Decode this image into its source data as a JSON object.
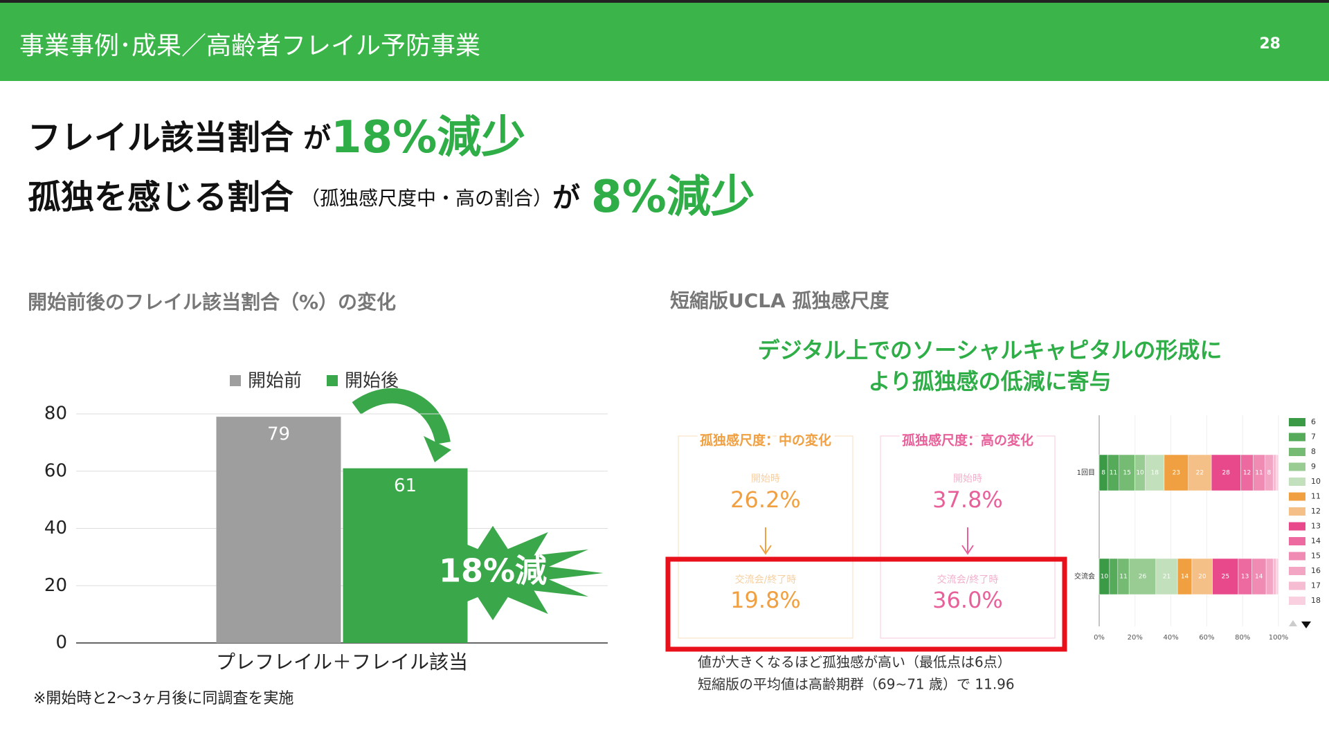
{
  "header": {
    "title": "事業事例･成果／高齢者フレイル予防事業",
    "page": "28"
  },
  "headline": [
    {
      "label": "フレイル該当割合",
      "connector": "が",
      "result": "18%減少"
    },
    {
      "label": "孤独を感じる割合",
      "note": "（孤独感尺度中・高の割合）",
      "connector": "が",
      "result": "8%減少"
    }
  ],
  "left_caption": "開始前後のフレイル該当割合（%）の変化",
  "footnote": "※開始時と2〜3ヶ月後に同調査を実施",
  "right_caption": "短縮版UCLA 孤独感尺度",
  "right_message": [
    "デジタル上でのソーシャルキャピタルの形成に",
    "より孤独感の低減に寄与"
  ],
  "change_boxes": [
    {
      "title": "孤独感尺度：中の変化",
      "before_label": "開始時",
      "before": "26.2%",
      "after_label": "交流会/終了時",
      "after": "19.8%",
      "color": "#f0a040"
    },
    {
      "title": "孤独感尺度：高の変化",
      "before_label": "開始時",
      "before": "37.8%",
      "after_label": "交流会/終了時",
      "after": "36.0%",
      "color": "#e8609a"
    }
  ],
  "notes": [
    "値が大きくなるほど孤独感が高い（最低点は6点）",
    "短縮版の平均値は高齢期群（69~71 歳）で 11.96"
  ],
  "chart_data": [
    {
      "type": "bar",
      "categories": [
        "プレフレイル＋フレイル該当"
      ],
      "series": [
        {
          "name": "開始前",
          "color": "#9e9e9e",
          "values": [
            79
          ]
        },
        {
          "name": "開始後",
          "color": "#3aa84a",
          "values": [
            61
          ]
        }
      ],
      "ylim": [
        0,
        80
      ],
      "yticks": [
        0,
        20,
        40,
        60,
        80
      ],
      "grid": true,
      "annotation": "18%減"
    },
    {
      "type": "stacked_bar_100",
      "categories": [
        "1回目",
        "交流会"
      ],
      "series": [
        {
          "name": "6",
          "color": "#3a9a45",
          "values": [
            8,
            10
          ]
        },
        {
          "name": "7",
          "color": "#55ab5a",
          "values": [
            11,
            8
          ]
        },
        {
          "name": "8",
          "color": "#76bb74",
          "values": [
            15,
            11
          ]
        },
        {
          "name": "9",
          "color": "#98cc92",
          "values": [
            10,
            26
          ]
        },
        {
          "name": "10",
          "color": "#c2e0bc",
          "values": [
            18,
            21
          ]
        },
        {
          "name": "11",
          "color": "#f0a040",
          "values": [
            23,
            14
          ]
        },
        {
          "name": "12",
          "color": "#f5c088",
          "values": [
            22,
            20
          ]
        },
        {
          "name": "13",
          "color": "#e8498a",
          "values": [
            28,
            25
          ]
        },
        {
          "name": "14",
          "color": "#ec6aa0",
          "values": [
            12,
            13
          ]
        },
        {
          "name": "15",
          "color": "#f08cb4",
          "values": [
            11,
            14
          ]
        },
        {
          "name": "16",
          "color": "#f3a6c4",
          "values": [
            8,
            7
          ]
        },
        {
          "name": "17",
          "color": "#f6bcd2",
          "values": [
            3,
            3
          ]
        },
        {
          "name": "18",
          "color": "#f9d0e0",
          "values": [
            2,
            2
          ]
        }
      ],
      "xlim": [
        0,
        100
      ],
      "xticks": [
        {
          "value": 0,
          "label": "0%"
        },
        {
          "value": 20,
          "label": "20%"
        },
        {
          "value": 40,
          "label": "40%"
        },
        {
          "value": 60,
          "label": "60%"
        },
        {
          "value": 80,
          "label": "80%"
        },
        {
          "value": 100,
          "label": "100%"
        }
      ]
    }
  ]
}
